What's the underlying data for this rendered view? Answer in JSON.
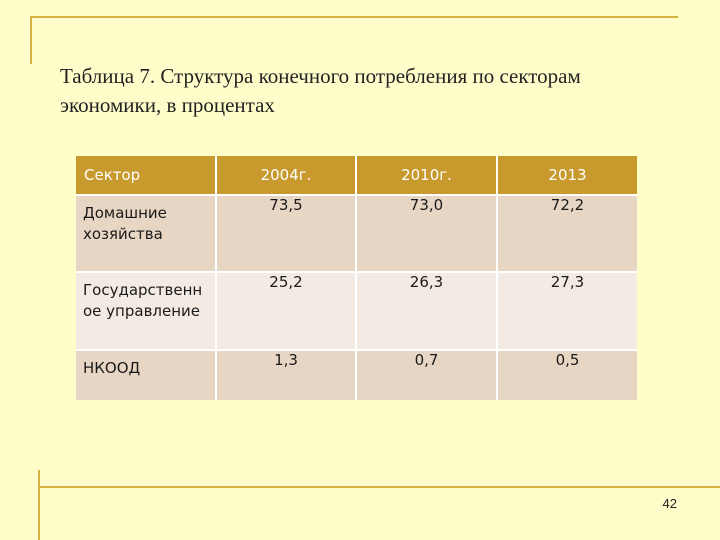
{
  "title": "Таблица 7. Структура конечного потребления по секторам экономики, в процентах",
  "table": {
    "headers": [
      "Сектор",
      "2004г.",
      "2010г.",
      "2013"
    ],
    "rows": [
      [
        "Домашние хозяйства",
        "73,5",
        "73,0",
        "72,2"
      ],
      [
        "Государственн ое управление",
        "25,2",
        "26,3",
        "27,3"
      ],
      [
        "НКООД",
        "1,3",
        "0,7",
        "0,5"
      ]
    ]
  },
  "page_number": "42",
  "colors": {
    "background": "#fffecb",
    "accent": "#d7b245",
    "header": "#c89a2d",
    "row_dark": "#e7d6c4",
    "row_light": "#f3ebe3"
  }
}
